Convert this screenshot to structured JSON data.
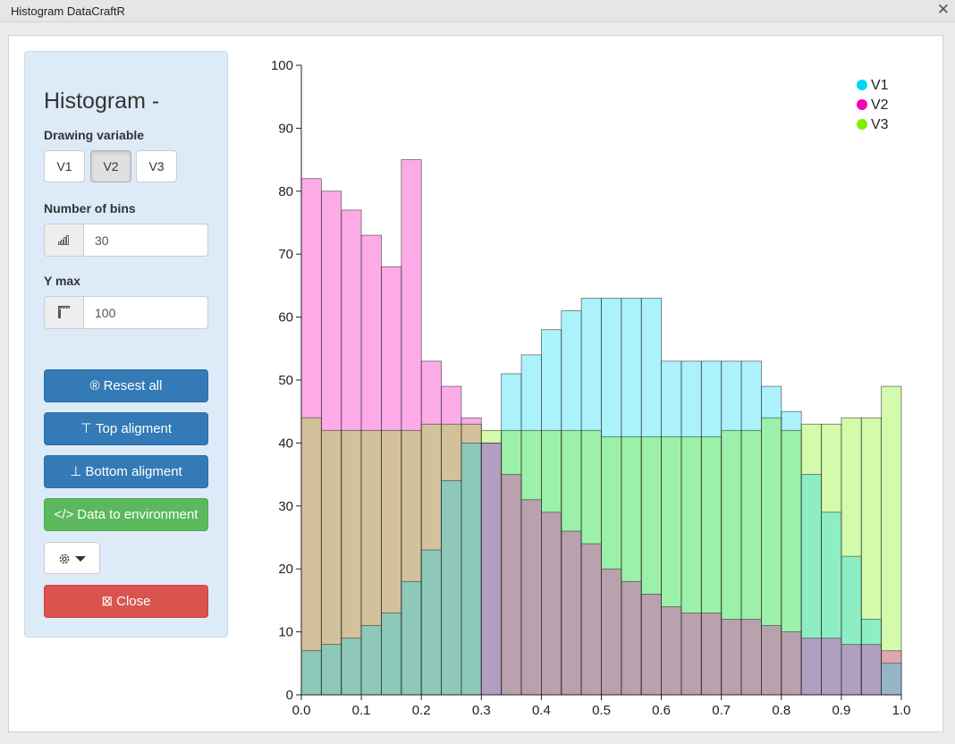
{
  "window": {
    "title": "Histogram DataCraftR"
  },
  "sidebar": {
    "heading": "Histogram -",
    "drawing_variable_label": "Drawing variable",
    "variables": [
      "V1",
      "V2",
      "V3"
    ],
    "selected_variable": "V2",
    "bins_label": "Number of bins",
    "bins_value": "30",
    "ymax_label": "Y max",
    "ymax_value": "100",
    "buttons": {
      "reset": "Resest all",
      "top": "Top aligment",
      "bottom": "Bottom aligment",
      "data_env": "Data to environment",
      "close": "Close"
    },
    "icons": {
      "bins": "bar-chart-icon",
      "ymax": "ruler-icon",
      "reset": "registered-icon",
      "top": "align-top-icon",
      "bottom": "align-bottom-icon",
      "data_env": "code-icon",
      "settings": "gear-icon",
      "close": "close-box-icon"
    }
  },
  "chart_data": {
    "type": "bar",
    "title": "",
    "xlabel": "",
    "ylabel": "",
    "xlim": [
      0.0,
      1.0
    ],
    "ylim": [
      0,
      100
    ],
    "bins": 30,
    "xticks": [
      "0.0",
      "0.1",
      "0.2",
      "0.3",
      "0.4",
      "0.5",
      "0.6",
      "0.7",
      "0.8",
      "0.9",
      "1.0"
    ],
    "yticks": [
      "0",
      "10",
      "20",
      "30",
      "40",
      "50",
      "60",
      "70",
      "80",
      "90",
      "100"
    ],
    "legend_position": "top-right",
    "series": [
      {
        "name": "V1",
        "color": "#00d8f5",
        "values": [
          7,
          8,
          9,
          11,
          13,
          18,
          23,
          34,
          40,
          40,
          51,
          54,
          58,
          61,
          63,
          63,
          63,
          63,
          53,
          53,
          53,
          53,
          53,
          49,
          45,
          35,
          29,
          22,
          12,
          5
        ]
      },
      {
        "name": "V2",
        "color": "#f700b5",
        "values": [
          82,
          80,
          77,
          73,
          68,
          85,
          53,
          49,
          44,
          40,
          35,
          31,
          29,
          26,
          24,
          20,
          18,
          16,
          14,
          13,
          13,
          12,
          12,
          11,
          10,
          9,
          9,
          8,
          8,
          7
        ]
      },
      {
        "name": "V3",
        "color": "#7df000",
        "values": [
          44,
          42,
          42,
          42,
          42,
          42,
          43,
          43,
          43,
          42,
          42,
          42,
          42,
          42,
          42,
          41,
          41,
          41,
          41,
          41,
          41,
          42,
          42,
          44,
          42,
          43,
          43,
          44,
          44,
          49
        ]
      }
    ]
  }
}
